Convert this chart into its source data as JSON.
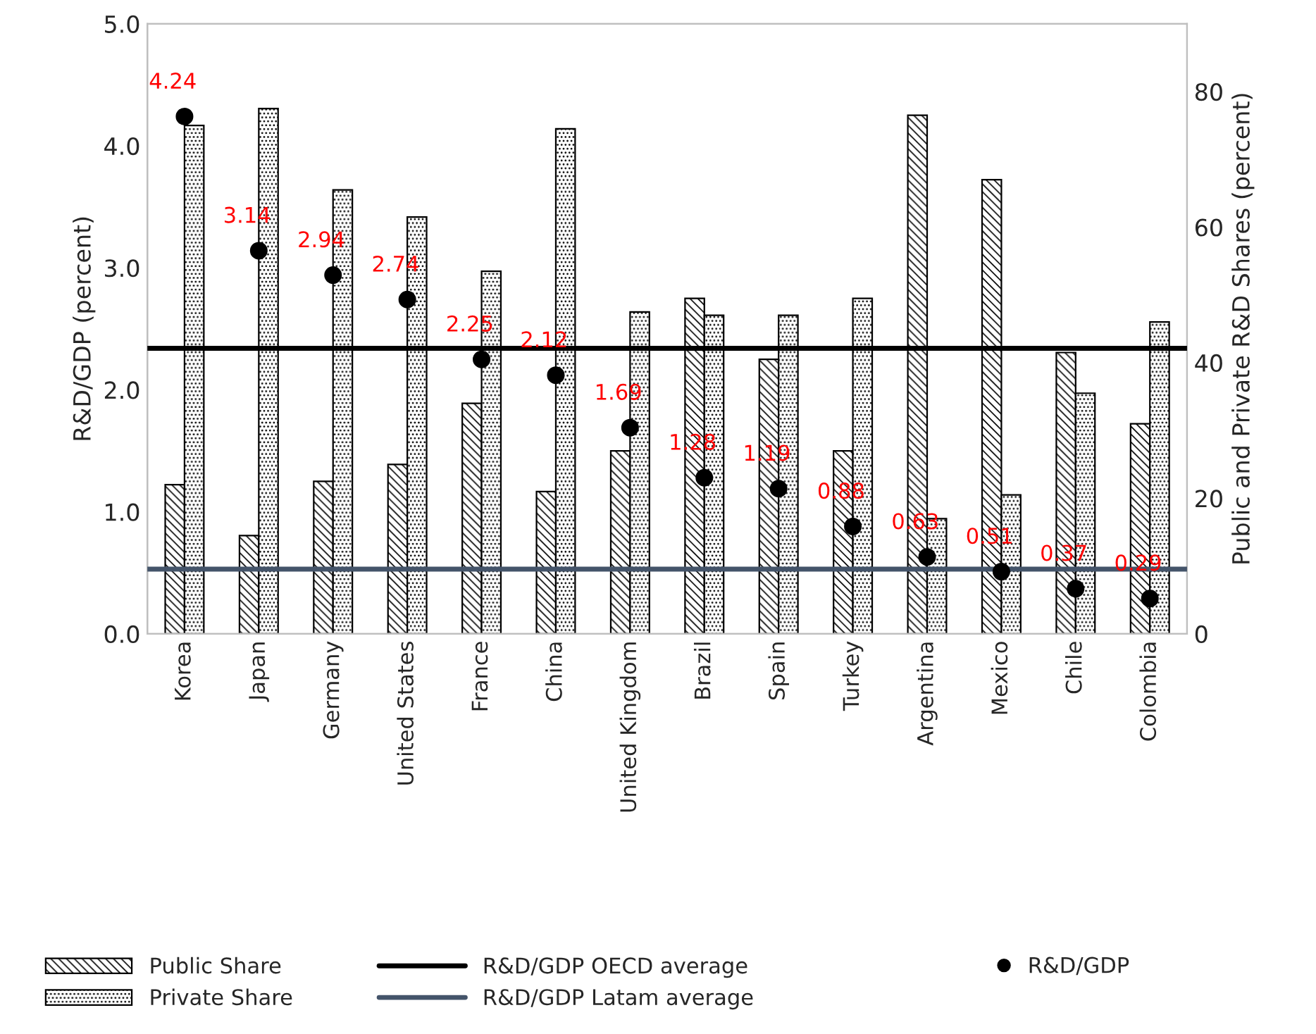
{
  "chart_data": {
    "type": "bar",
    "ylabel": "R&D/GDP (percent)",
    "y2label": "Public and Private R&D Shares (percent)",
    "categories": [
      "Korea",
      "Japan",
      "Germany",
      "United States",
      "France",
      "China",
      "United Kingdom",
      "Brazil",
      "Spain",
      "Turkey",
      "Argentina",
      "Mexico",
      "Chile",
      "Colombia"
    ],
    "series": [
      {
        "name": "Public Share",
        "axis": "y2",
        "color": "#000000",
        "values": [
          22,
          14.5,
          22.5,
          25,
          34,
          21,
          27,
          49.5,
          40.5,
          27,
          76.5,
          67,
          41.5,
          31
        ]
      },
      {
        "name": "Private Share",
        "axis": "y2",
        "color": "#000000",
        "values": [
          75,
          77.5,
          65.5,
          61.5,
          53.5,
          74.5,
          47.5,
          47,
          47,
          49.5,
          17,
          20.5,
          35.5,
          46
        ]
      },
      {
        "name": "R&D/GDP",
        "type": "scatter",
        "axis": "y",
        "color": "#000000",
        "marker": "circle",
        "values": [
          4.24,
          3.14,
          2.94,
          2.74,
          2.25,
          2.12,
          1.69,
          1.28,
          1.19,
          0.88,
          0.63,
          0.51,
          0.37,
          0.29
        ],
        "value_labels": [
          "4.24",
          "3.14",
          "2.94",
          "2.74",
          "2.25",
          "2.12",
          "1.69",
          "1.28",
          "1.19",
          "0.88",
          "0.63",
          "0.51",
          "0.37",
          "0.29"
        ]
      }
    ],
    "ref_lines": [
      {
        "axis": "y",
        "value": 2.34,
        "label": "R&D/GDP OECD average",
        "color": "#000000",
        "line_style": "solid"
      },
      {
        "axis": "y",
        "value": 0.53,
        "label": "R&D/GDP Latam average",
        "color": "#44546a",
        "line_style": "solid"
      }
    ],
    "ylim": [
      0,
      5
    ],
    "yticks": [
      {
        "value": 0,
        "label": "0.0"
      },
      {
        "value": 1,
        "label": "1.0"
      },
      {
        "value": 2,
        "label": "2.0"
      },
      {
        "value": 3,
        "label": "3.0"
      },
      {
        "value": 4,
        "label": "4.0"
      },
      {
        "value": 5,
        "label": "5.0"
      }
    ],
    "y2lim": [
      0,
      90
    ],
    "y2ticks": [
      0,
      20,
      40,
      60,
      80
    ],
    "grid": false,
    "legend": "bottom"
  }
}
